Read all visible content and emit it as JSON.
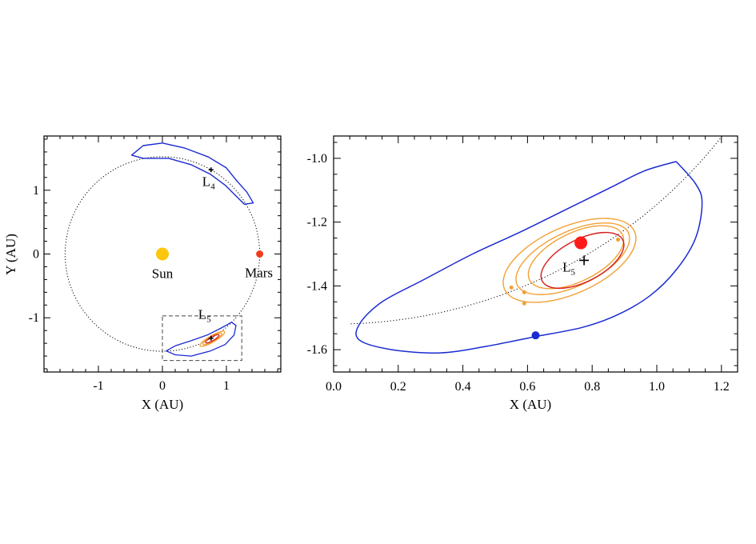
{
  "chart_data": [
    {
      "type": "scatter",
      "xlabel": "X (AU)",
      "ylabel": "Y (AU)",
      "xlim": [
        -1.85,
        1.85
      ],
      "ylim": [
        -1.85,
        1.85
      ],
      "xticks": [
        {
          "value": -1,
          "label": "-1"
        },
        {
          "value": 0,
          "label": "0"
        },
        {
          "value": 1,
          "label": "1"
        }
      ],
      "yticks": [
        {
          "value": -1,
          "label": "-1"
        },
        {
          "value": 0,
          "label": "0"
        },
        {
          "value": 1,
          "label": "1"
        }
      ],
      "grid": false,
      "colors": {
        "orbit": "#000000",
        "tadpole": "#1a2bd0",
        "sun": "#fcc60c",
        "mars": "#f03c1e",
        "orange": "#f3a033",
        "red": "#d81b1b"
      },
      "points": [
        {
          "name": "sun",
          "label": "Sun",
          "x": 0.0,
          "y": 0.0,
          "color": "#fcc60c"
        },
        {
          "name": "mars",
          "label": "Mars",
          "x": 1.52,
          "y": 0.0,
          "color": "#f03c1e"
        },
        {
          "name": "l4",
          "label": "L",
          "sub": "4",
          "x": 0.76,
          "y": 1.32,
          "color": "#000000"
        },
        {
          "name": "l5",
          "label": "L",
          "sub": "5",
          "x": 0.76,
          "y": -1.32,
          "color": "#000000"
        }
      ],
      "orbit_radius": 1.52,
      "inset_box": {
        "x": [
          0.0,
          1.24
        ],
        "y": [
          -1.67,
          -0.97
        ]
      }
    },
    {
      "type": "line",
      "xlabel": "X (AU)",
      "ylabel": "",
      "xlim": [
        0.0,
        1.25
      ],
      "ylim": [
        -1.67,
        -0.93
      ],
      "xticks": [
        {
          "value": 0.0,
          "label": "0.0"
        },
        {
          "value": 0.2,
          "label": "0.2"
        },
        {
          "value": 0.4,
          "label": "0.4"
        },
        {
          "value": 0.6,
          "label": "0.6"
        },
        {
          "value": 0.8,
          "label": "0.8"
        },
        {
          "value": 1.0,
          "label": "1.0"
        },
        {
          "value": 1.2,
          "label": "1.2"
        }
      ],
      "yticks": [
        {
          "value": -1.0,
          "label": "-1.0"
        },
        {
          "value": -1.2,
          "label": "-1.2"
        },
        {
          "value": -1.4,
          "label": "-1.4"
        },
        {
          "value": -1.6,
          "label": "-1.6"
        }
      ],
      "grid": false,
      "series": [
        {
          "kind": "tadpole",
          "color": "#1a2bd0",
          "points": [
            [
              1.06,
              -1.01
            ],
            [
              1.12,
              -1.08
            ],
            [
              1.14,
              -1.14
            ],
            [
              1.12,
              -1.25
            ],
            [
              1.06,
              -1.35
            ],
            [
              0.98,
              -1.43
            ],
            [
              0.88,
              -1.49
            ],
            [
              0.77,
              -1.53
            ],
            [
              0.62,
              -1.56
            ],
            [
              0.47,
              -1.59
            ],
            [
              0.33,
              -1.61
            ],
            [
              0.18,
              -1.6
            ],
            [
              0.08,
              -1.57
            ],
            [
              0.08,
              -1.52
            ],
            [
              0.15,
              -1.45
            ],
            [
              0.28,
              -1.38
            ],
            [
              0.43,
              -1.3
            ],
            [
              0.58,
              -1.23
            ],
            [
              0.72,
              -1.16
            ],
            [
              0.86,
              -1.09
            ],
            [
              0.96,
              -1.04
            ],
            [
              1.06,
              -1.01
            ]
          ]
        },
        {
          "kind": "horseshoe",
          "color": "#f3a033",
          "cx": 0.73,
          "cy": -1.32,
          "a": 0.22,
          "b": 0.055,
          "tilt": 24
        },
        {
          "kind": "horseshoe",
          "color": "#f3a033",
          "cx": 0.74,
          "cy": -1.315,
          "a": 0.19,
          "b": 0.045,
          "tilt": 25
        },
        {
          "kind": "horseshoe",
          "color": "#f3a033",
          "cx": 0.75,
          "cy": -1.31,
          "a": 0.16,
          "b": 0.04,
          "tilt": 26
        },
        {
          "kind": "horseshoe",
          "color": "#d81b1b",
          "cx": 0.77,
          "cy": -1.32,
          "a": 0.14,
          "b": 0.035,
          "tilt": 27
        }
      ],
      "markers": [
        {
          "name": "asteroid-blue",
          "x": 0.625,
          "y": -1.555,
          "color": "#1a2bd0",
          "size": 5
        },
        {
          "name": "asteroid-red",
          "x": 0.765,
          "y": -1.265,
          "color": "#ff1a1a",
          "size": 8
        },
        {
          "name": "asteroid-orange-1",
          "x": 0.55,
          "y": -1.405,
          "color": "#f3a033",
          "size": 2.5
        },
        {
          "name": "asteroid-orange-2",
          "x": 0.59,
          "y": -1.455,
          "color": "#f3a033",
          "size": 2.5
        },
        {
          "name": "asteroid-orange-3",
          "x": 0.59,
          "y": -1.42,
          "color": "#f3a033",
          "size": 2.5
        },
        {
          "name": "asteroid-orange-4",
          "x": 0.88,
          "y": -1.255,
          "color": "#f3a033",
          "size": 2.5
        }
      ],
      "l5": {
        "label": "L",
        "sub": "5",
        "x": 0.775,
        "y": -1.32
      }
    }
  ]
}
